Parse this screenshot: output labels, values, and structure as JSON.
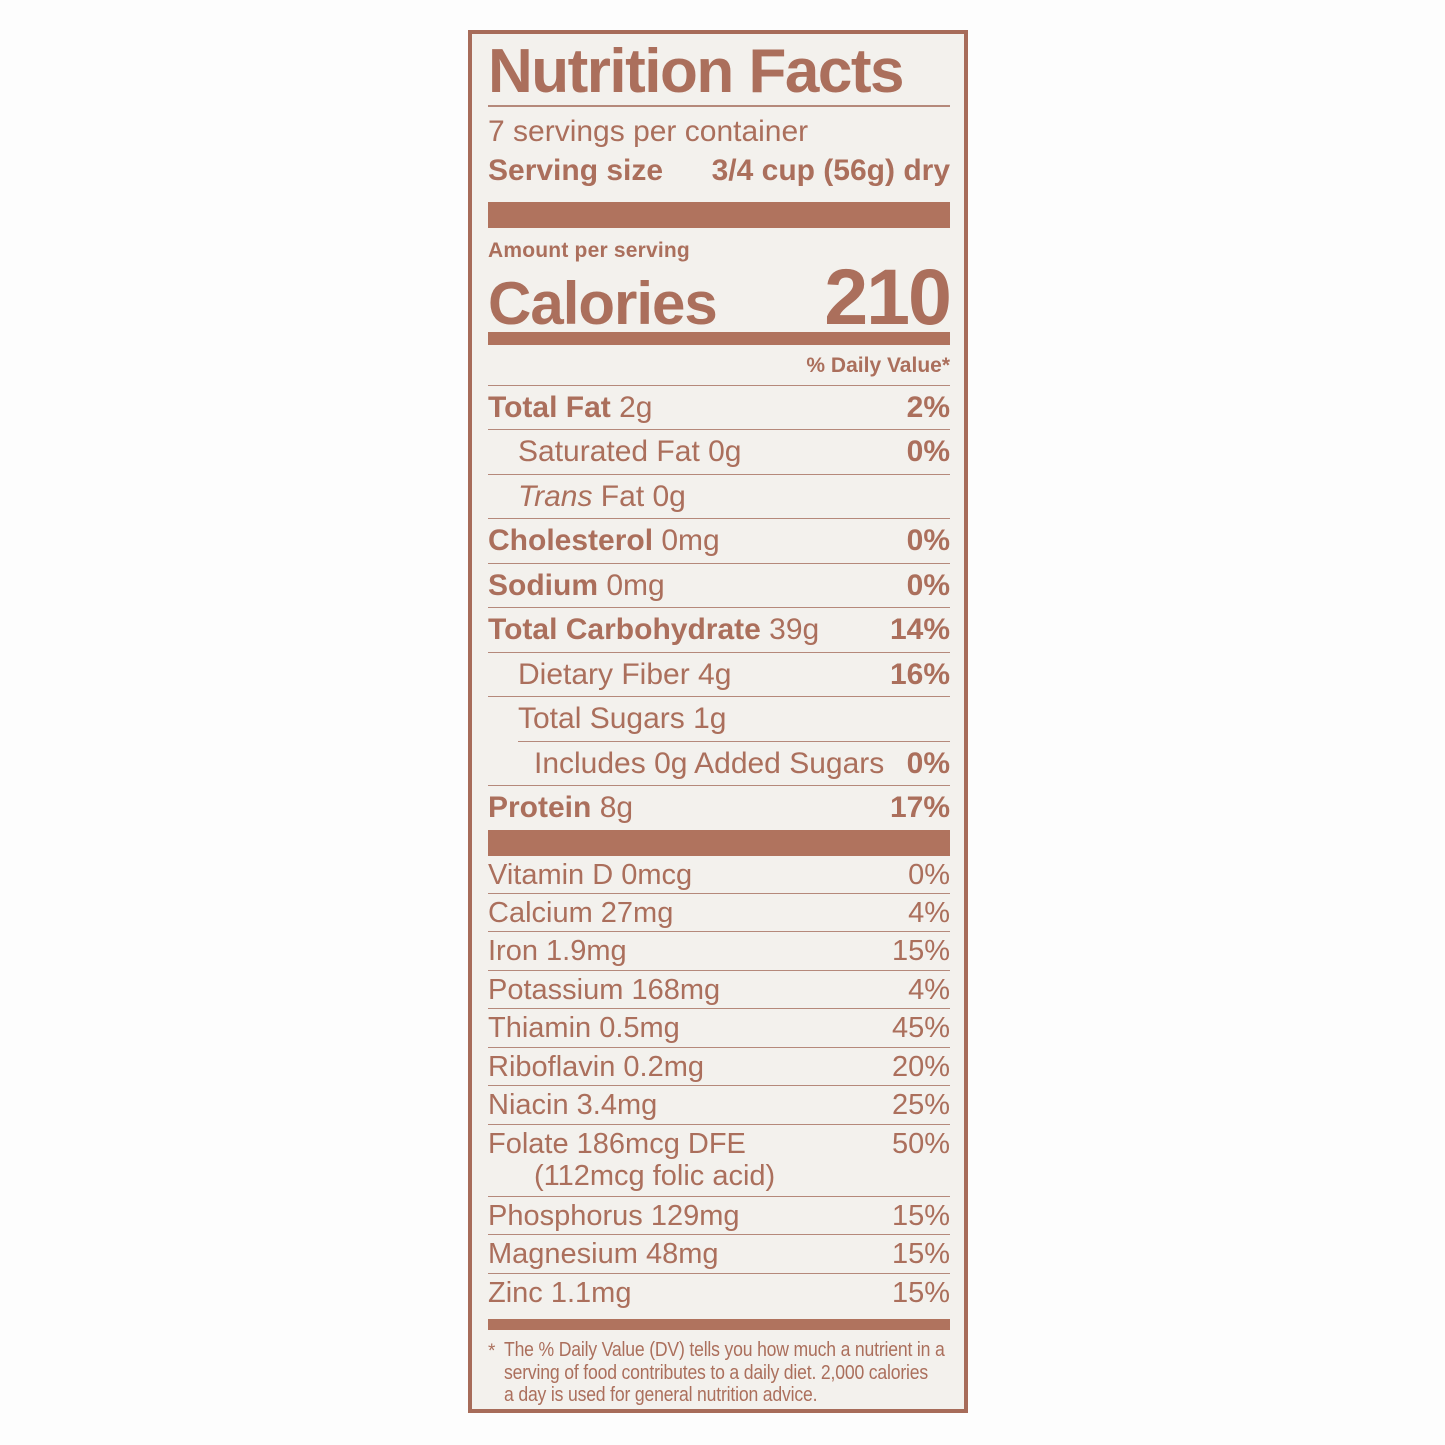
{
  "colors": {
    "accent": "#ab6f5c",
    "bar": "#b0735e",
    "hairline": "#b5897b",
    "border": "#a76c5a",
    "label-bg": "#f3f1ed",
    "page-bg": "#fdfdfd"
  },
  "label": {
    "title": "Nutrition Facts",
    "servings_per_container": "7 servings per container",
    "serving_size": {
      "label": "Serving size",
      "value": "3/4 cup (56g) dry"
    },
    "amount_per_serving": "Amount per serving",
    "calories": {
      "label": "Calories",
      "value": "210"
    },
    "daily_value_header": "% Daily Value*",
    "main_rows": [
      {
        "name": "Total Fat",
        "amount": "2g",
        "dv": "2%",
        "bold": true,
        "indent": 0
      },
      {
        "name": "Saturated Fat",
        "amount": "0g",
        "dv": "0%",
        "bold": false,
        "indent": 1
      },
      {
        "name": "Trans Fat",
        "italic_prefix": "Trans",
        "name_rest": "Fat",
        "amount": "0g",
        "dv": "",
        "bold": false,
        "indent": 1
      },
      {
        "name": "Cholesterol",
        "amount": "0mg",
        "dv": "0%",
        "bold": true,
        "indent": 0
      },
      {
        "name": "Sodium",
        "amount": "0mg",
        "dv": "0%",
        "bold": true,
        "indent": 0
      },
      {
        "name": "Total Carbohydrate",
        "amount": "39g",
        "dv": "14%",
        "bold": true,
        "indent": 0
      },
      {
        "name": "Dietary Fiber",
        "amount": "4g",
        "dv": "16%",
        "bold": false,
        "indent": 1
      },
      {
        "name": "Total Sugars",
        "amount": "1g",
        "dv": "",
        "bold": false,
        "indent": 1,
        "sep_indent": true
      },
      {
        "name": "Includes 0g Added Sugars",
        "amount": "",
        "dv": "0%",
        "bold": false,
        "indent": 2
      },
      {
        "name": "Protein",
        "amount": "8g",
        "dv": "17%",
        "bold": true,
        "indent": 0,
        "no_sep": true
      }
    ],
    "vitamin_rows": [
      {
        "name": "Vitamin D 0mcg",
        "dv": "0%"
      },
      {
        "name": "Calcium 27mg",
        "dv": "4%"
      },
      {
        "name": "Iron 1.9mg",
        "dv": "15%"
      },
      {
        "name": "Potassium 168mg",
        "dv": "4%"
      },
      {
        "name": "Thiamin 0.5mg",
        "dv": "45%"
      },
      {
        "name": "Riboflavin 0.2mg",
        "dv": "20%"
      },
      {
        "name": "Niacin 3.4mg",
        "dv": "25%"
      },
      {
        "name": "Folate 186mcg DFE",
        "dv": "50%",
        "sub": "(112mcg folic acid)"
      },
      {
        "name": "Phosphorus 129mg",
        "dv": "15%"
      },
      {
        "name": "Magnesium 48mg",
        "dv": "15%"
      },
      {
        "name": "Zinc 1.1mg",
        "dv": "15%",
        "no_sep": true
      }
    ],
    "footnote": {
      "marker": "*",
      "lines": [
        "The % Daily Value (DV) tells you how much a nutrient in a",
        "serving of food contributes to a daily diet. 2,000 calories",
        "a day is used for general nutrition advice."
      ]
    }
  }
}
